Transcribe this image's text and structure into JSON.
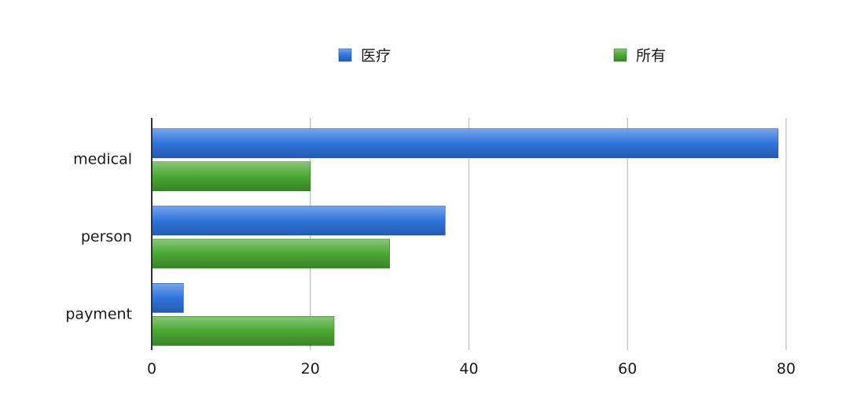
{
  "chart_data": {
    "type": "bar",
    "orientation": "horizontal",
    "title": "",
    "xlabel": "",
    "ylabel": "",
    "categories": [
      "medical",
      "person",
      "payment"
    ],
    "series": [
      {
        "name": "医疗",
        "color": "#2f74dd",
        "values": [
          79,
          37,
          4
        ]
      },
      {
        "name": "所有",
        "color": "#4aa833",
        "values": [
          20,
          30,
          23
        ]
      }
    ],
    "xlim": [
      0,
      80
    ],
    "xticks": [
      "0",
      "20",
      "40",
      "60",
      "80"
    ],
    "grid": "vertical",
    "legend_position": "top"
  }
}
